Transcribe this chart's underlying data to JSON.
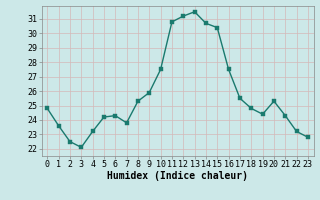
{
  "x": [
    0,
    1,
    2,
    3,
    4,
    5,
    6,
    7,
    8,
    9,
    10,
    11,
    12,
    13,
    14,
    15,
    16,
    17,
    18,
    19,
    20,
    21,
    22,
    23
  ],
  "y": [
    24.8,
    23.6,
    22.5,
    22.1,
    23.2,
    24.2,
    24.3,
    23.8,
    25.3,
    25.9,
    27.5,
    30.8,
    31.2,
    31.5,
    30.7,
    30.4,
    27.5,
    25.5,
    24.8,
    24.4,
    25.3,
    24.3,
    23.2,
    22.8
  ],
  "line_color": "#1a7a6e",
  "marker_color": "#1a7a6e",
  "bg_color": "#cce8e8",
  "grid_color": "#c0dcdc",
  "xlabel": "Humidex (Indice chaleur)",
  "ylabel_ticks": [
    22,
    23,
    24,
    25,
    26,
    27,
    28,
    29,
    30,
    31
  ],
  "xtick_labels": [
    "0",
    "1",
    "2",
    "3",
    "4",
    "5",
    "6",
    "7",
    "8",
    "9",
    "10",
    "11",
    "12",
    "13",
    "14",
    "15",
    "16",
    "17",
    "18",
    "19",
    "20",
    "21",
    "22",
    "23"
  ],
  "ylim": [
    21.5,
    31.9
  ],
  "xlim": [
    -0.5,
    23.5
  ],
  "xlabel_fontsize": 7,
  "tick_fontsize": 6,
  "line_width": 1.0,
  "marker_size": 2.5
}
